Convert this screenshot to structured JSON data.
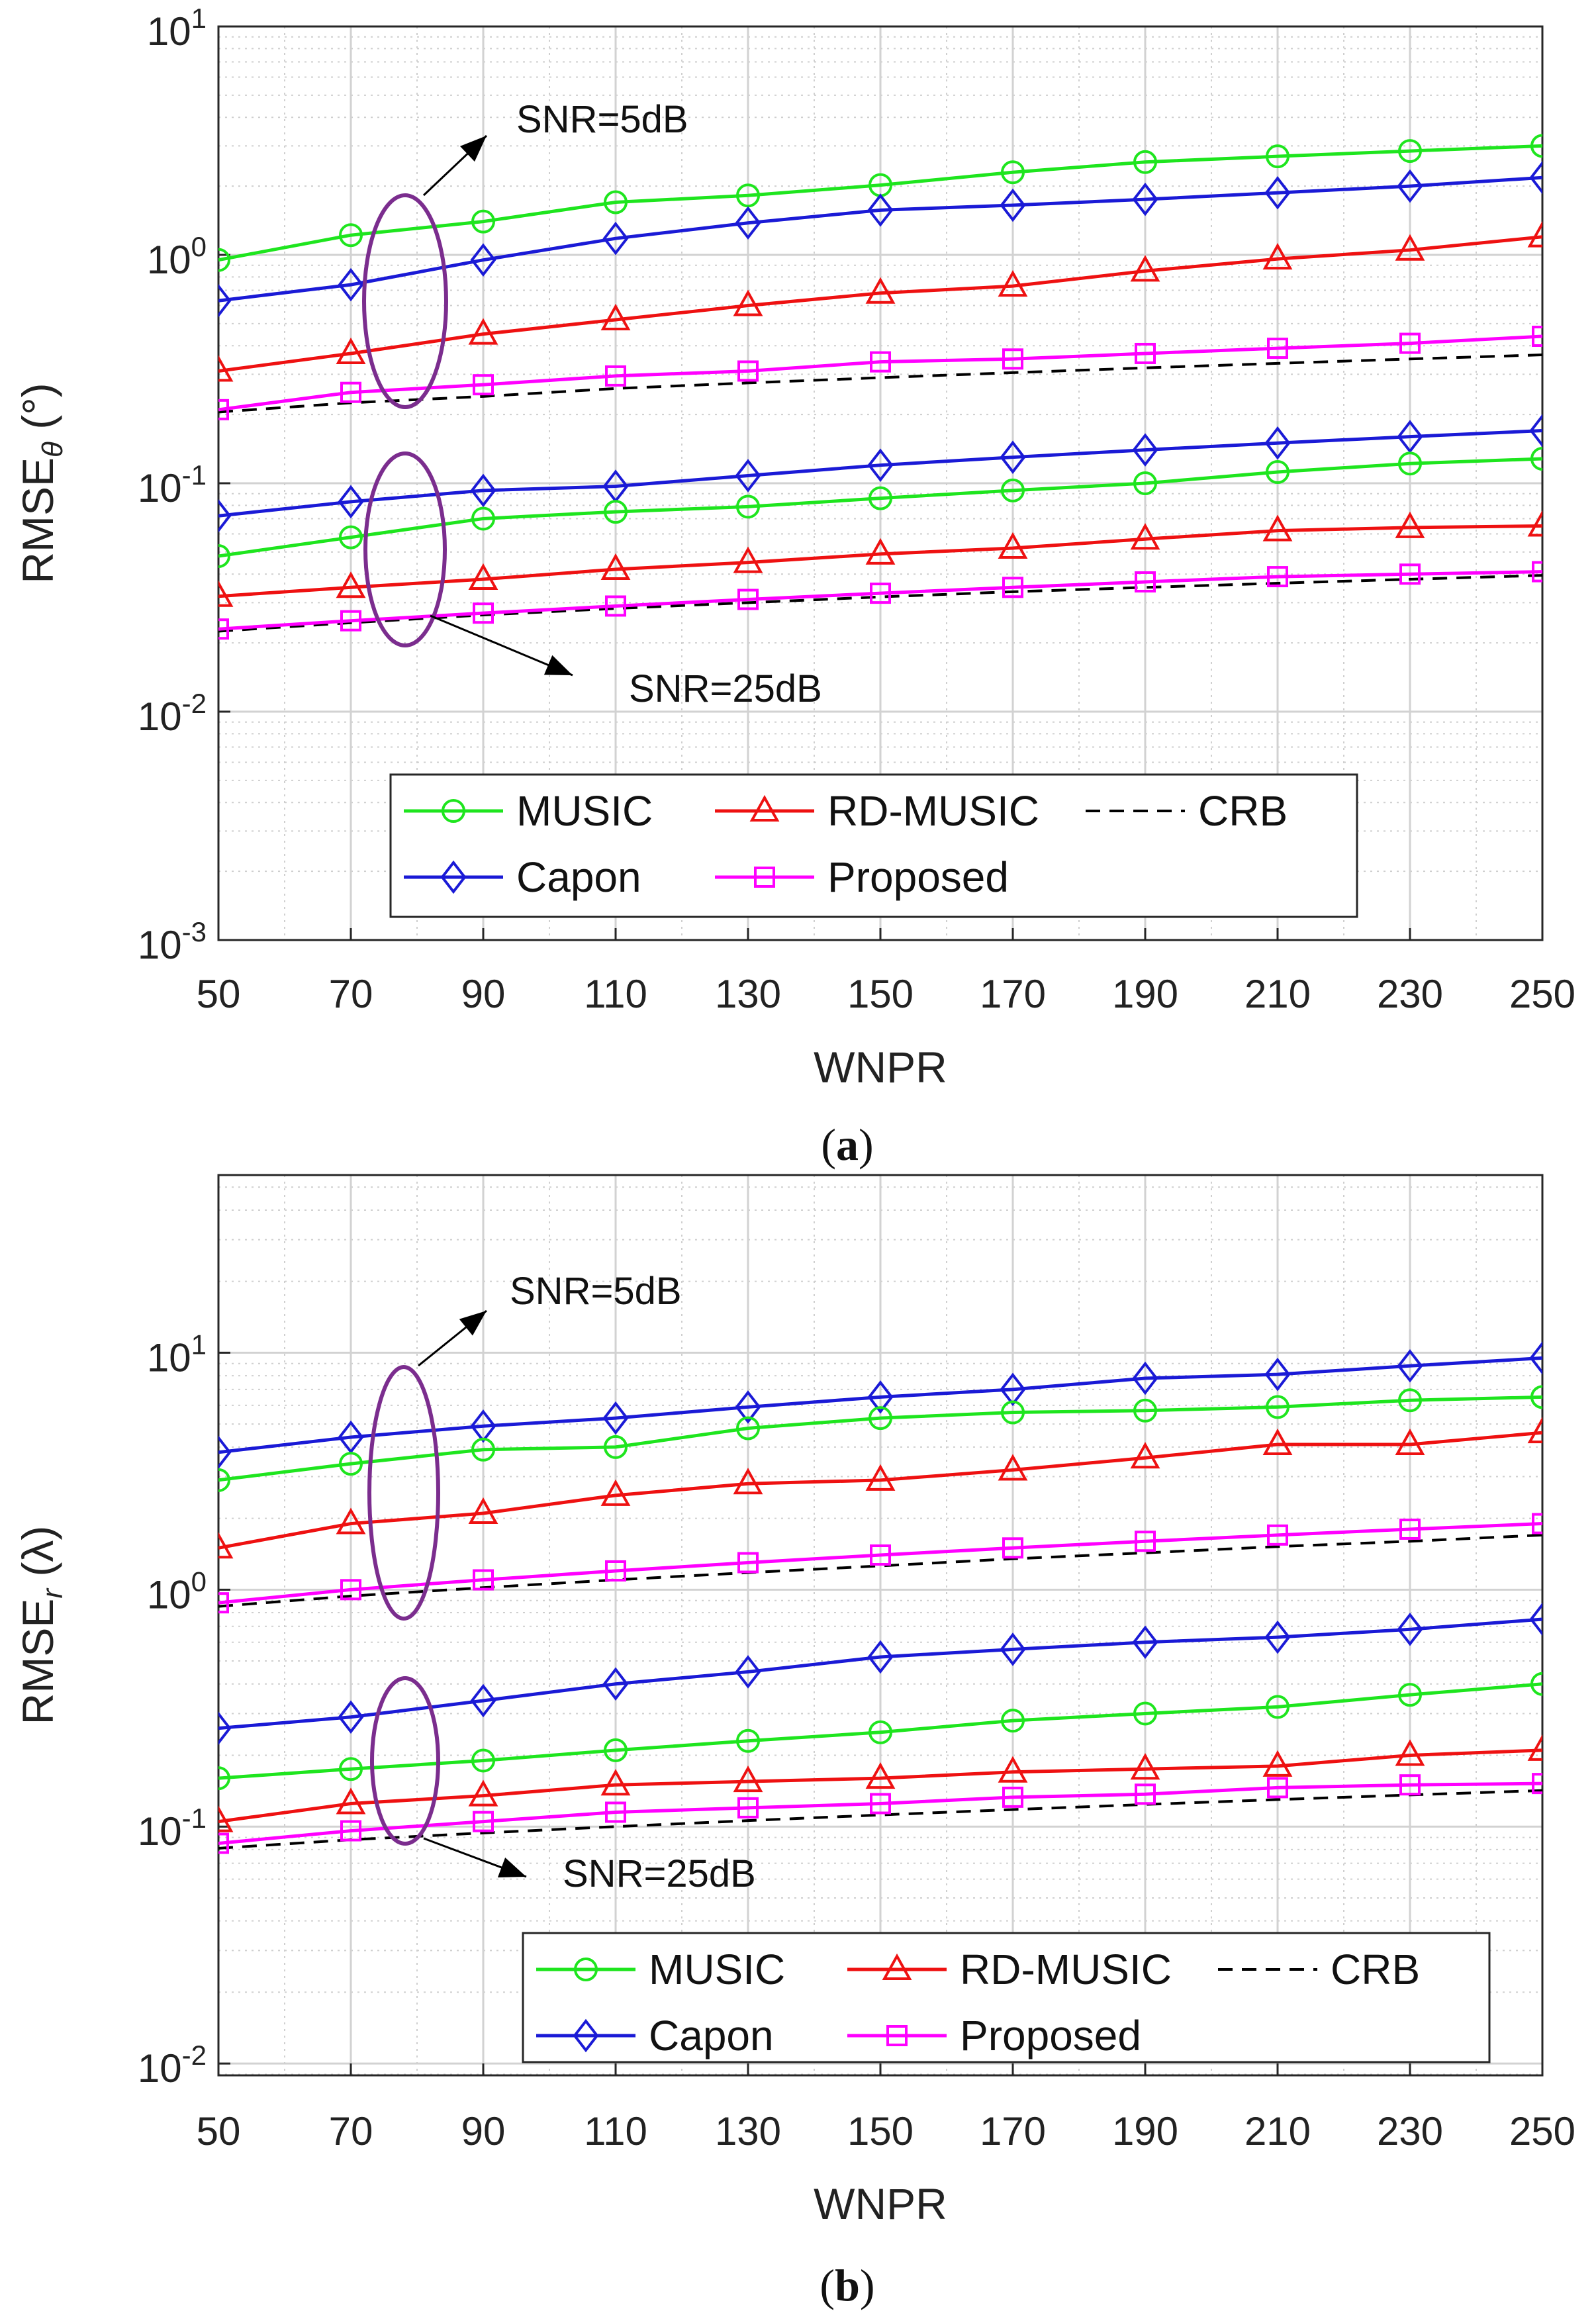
{
  "chart_data": [
    {
      "type": "line",
      "panel": "a",
      "caption_letter": "a",
      "xlabel": "WNPR",
      "ylabel_main": "RMSE",
      "ylabel_sub": "θ",
      "ylabel_unit": "(°)",
      "x": [
        50,
        70,
        90,
        110,
        130,
        150,
        170,
        190,
        210,
        230,
        250
      ],
      "xlim": [
        50,
        250
      ],
      "ylim_log10": [
        -3,
        1
      ],
      "yscale": "log",
      "grid": true,
      "legend_position": "bottom",
      "annotations": [
        "SNR=5dB",
        "SNR=25dB"
      ],
      "series": [
        {
          "name": "MUSIC",
          "color": "#1ee51e",
          "marker": "circle",
          "group": "SNR=5dB",
          "values": [
            0.95,
            1.22,
            1.4,
            1.7,
            1.82,
            2.02,
            2.3,
            2.55,
            2.7,
            2.85,
            3.0
          ]
        },
        {
          "name": "Capon",
          "color": "#1a1ad6",
          "marker": "diamond",
          "group": "SNR=5dB",
          "values": [
            0.63,
            0.74,
            0.95,
            1.18,
            1.38,
            1.57,
            1.65,
            1.75,
            1.87,
            2.0,
            2.18
          ]
        },
        {
          "name": "RD-MUSIC",
          "color": "#ee1111",
          "marker": "triangle",
          "group": "SNR=5dB",
          "values": [
            0.31,
            0.37,
            0.45,
            0.52,
            0.6,
            0.68,
            0.73,
            0.85,
            0.96,
            1.05,
            1.2
          ]
        },
        {
          "name": "Proposed",
          "color": "#ff00ff",
          "marker": "square",
          "group": "SNR=5dB",
          "values": [
            0.21,
            0.25,
            0.27,
            0.295,
            0.31,
            0.34,
            0.35,
            0.37,
            0.39,
            0.41,
            0.44
          ]
        },
        {
          "name": "CRB",
          "color": "#000000",
          "marker": "none",
          "dashed": true,
          "group": "SNR=5dB",
          "values": [
            0.205,
            0.225,
            0.24,
            0.26,
            0.275,
            0.29,
            0.305,
            0.32,
            0.335,
            0.35,
            0.365
          ]
        },
        {
          "name": "Capon",
          "color": "#1a1ad6",
          "marker": "diamond",
          "group": "SNR=25dB",
          "values": [
            0.072,
            0.083,
            0.093,
            0.097,
            0.108,
            0.12,
            0.13,
            0.14,
            0.15,
            0.16,
            0.17
          ]
        },
        {
          "name": "MUSIC",
          "color": "#1ee51e",
          "marker": "circle",
          "group": "SNR=25dB",
          "values": [
            0.048,
            0.058,
            0.07,
            0.075,
            0.079,
            0.086,
            0.093,
            0.1,
            0.112,
            0.122,
            0.128
          ]
        },
        {
          "name": "RD-MUSIC",
          "color": "#ee1111",
          "marker": "triangle",
          "group": "SNR=25dB",
          "values": [
            0.032,
            0.035,
            0.038,
            0.042,
            0.045,
            0.049,
            0.052,
            0.057,
            0.062,
            0.064,
            0.065
          ]
        },
        {
          "name": "Proposed",
          "color": "#ff00ff",
          "marker": "square",
          "group": "SNR=25dB",
          "values": [
            0.023,
            0.025,
            0.027,
            0.029,
            0.031,
            0.033,
            0.035,
            0.037,
            0.039,
            0.04,
            0.041
          ]
        },
        {
          "name": "CRB",
          "color": "#000000",
          "marker": "none",
          "dashed": true,
          "group": "SNR=25dB",
          "values": [
            0.0225,
            0.0245,
            0.0265,
            0.0283,
            0.03,
            0.0318,
            0.0335,
            0.035,
            0.0365,
            0.038,
            0.0395
          ]
        }
      ]
    },
    {
      "type": "line",
      "panel": "b",
      "caption_letter": "b",
      "xlabel": "WNPR",
      "ylabel_main": "RMSE",
      "ylabel_sub": "r",
      "ylabel_unit": "(λ)",
      "x": [
        50,
        70,
        90,
        110,
        130,
        150,
        170,
        190,
        210,
        230,
        250
      ],
      "xlim": [
        50,
        250
      ],
      "ylim_log10": [
        -2.05,
        1.75
      ],
      "yscale": "log",
      "grid": true,
      "legend_position": "bottom",
      "annotations": [
        "SNR=5dB",
        "SNR=25dB"
      ],
      "series": [
        {
          "name": "Capon",
          "color": "#1a1ad6",
          "marker": "diamond",
          "group": "SNR=5dB",
          "values": [
            3.8,
            4.4,
            4.9,
            5.3,
            5.9,
            6.5,
            7.0,
            7.8,
            8.1,
            8.8,
            9.5
          ]
        },
        {
          "name": "MUSIC",
          "color": "#1ee51e",
          "marker": "circle",
          "group": "SNR=5dB",
          "values": [
            2.9,
            3.4,
            3.9,
            4.0,
            4.8,
            5.3,
            5.6,
            5.7,
            5.9,
            6.3,
            6.5
          ]
        },
        {
          "name": "RD-MUSIC",
          "color": "#ee1111",
          "marker": "triangle",
          "group": "SNR=5dB",
          "values": [
            1.5,
            1.9,
            2.1,
            2.5,
            2.8,
            2.9,
            3.2,
            3.6,
            4.1,
            4.1,
            4.6
          ]
        },
        {
          "name": "Proposed",
          "color": "#ff00ff",
          "marker": "square",
          "group": "SNR=5dB",
          "values": [
            0.88,
            1.0,
            1.1,
            1.2,
            1.3,
            1.4,
            1.5,
            1.6,
            1.7,
            1.8,
            1.9
          ]
        },
        {
          "name": "CRB",
          "color": "#000000",
          "marker": "none",
          "dashed": true,
          "group": "SNR=5dB",
          "values": [
            0.85,
            0.94,
            1.02,
            1.1,
            1.18,
            1.26,
            1.35,
            1.43,
            1.52,
            1.6,
            1.7
          ]
        },
        {
          "name": "Capon",
          "color": "#1a1ad6",
          "marker": "diamond",
          "group": "SNR=25dB",
          "values": [
            0.26,
            0.29,
            0.34,
            0.4,
            0.45,
            0.52,
            0.56,
            0.6,
            0.63,
            0.68,
            0.75
          ]
        },
        {
          "name": "MUSIC",
          "color": "#1ee51e",
          "marker": "circle",
          "group": "SNR=25dB",
          "values": [
            0.16,
            0.175,
            0.19,
            0.21,
            0.23,
            0.25,
            0.28,
            0.3,
            0.32,
            0.36,
            0.4
          ]
        },
        {
          "name": "RD-MUSIC",
          "color": "#ee1111",
          "marker": "triangle",
          "group": "SNR=25dB",
          "values": [
            0.105,
            0.125,
            0.135,
            0.15,
            0.155,
            0.16,
            0.17,
            0.175,
            0.18,
            0.2,
            0.21
          ]
        },
        {
          "name": "Proposed",
          "color": "#ff00ff",
          "marker": "square",
          "group": "SNR=25dB",
          "values": [
            0.085,
            0.096,
            0.105,
            0.115,
            0.12,
            0.125,
            0.133,
            0.137,
            0.146,
            0.15,
            0.152
          ]
        },
        {
          "name": "CRB",
          "color": "#000000",
          "marker": "none",
          "dashed": true,
          "group": "SNR=25dB",
          "values": [
            0.081,
            0.088,
            0.094,
            0.1,
            0.106,
            0.112,
            0.118,
            0.124,
            0.13,
            0.136,
            0.142
          ]
        }
      ]
    }
  ],
  "legend": {
    "row1": [
      "MUSIC",
      "RD-MUSIC",
      "CRB"
    ],
    "row2": [
      "Capon",
      "Proposed"
    ]
  }
}
